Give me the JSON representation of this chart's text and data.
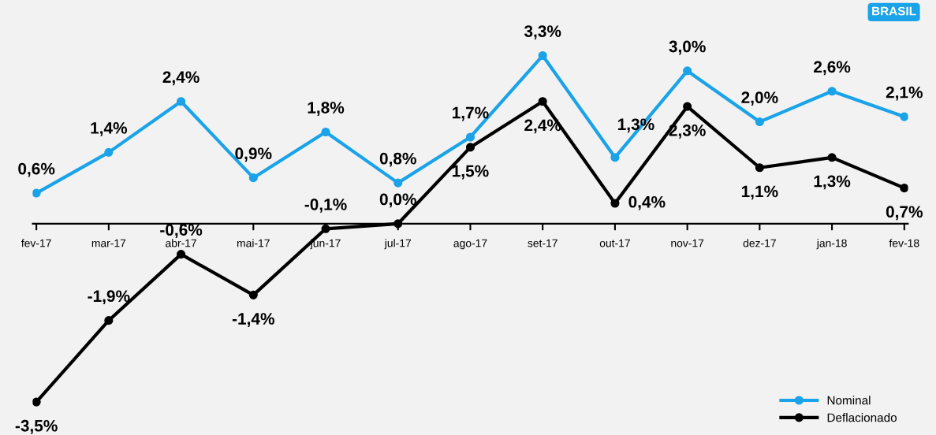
{
  "chart_data": {
    "type": "line",
    "categories": [
      "fev-17",
      "mar-17",
      "abr-17",
      "mai-17",
      "jun-17",
      "jul-17",
      "ago-17",
      "set-17",
      "out-17",
      "nov-17",
      "dez-17",
      "jan-18",
      "fev-18"
    ],
    "series": [
      {
        "name": "Nominal",
        "color": "#1aa3e8",
        "values": [
          0.6,
          1.4,
          2.4,
          0.9,
          1.8,
          0.8,
          1.7,
          3.3,
          1.3,
          3.0,
          2.0,
          2.6,
          2.1
        ],
        "value_labels": [
          "0,6%",
          "1,4%",
          "2,4%",
          "0,9%",
          "1,8%",
          "0,8%",
          "1,7%",
          "3,3%",
          "1,3%",
          "3,0%",
          "2,0%",
          "2,6%",
          "2,1%"
        ]
      },
      {
        "name": "Deflacionado",
        "color": "#000000",
        "values": [
          -3.5,
          -1.9,
          -0.6,
          -1.4,
          -0.1,
          0.0,
          1.5,
          2.4,
          0.4,
          2.3,
          1.1,
          1.3,
          0.7
        ],
        "value_labels": [
          "-3,5%",
          "-1,9%",
          "-0,6%",
          "-1,4%",
          "-0,1%",
          "0,0%",
          "1,5%",
          "2,4%",
          "0,4%",
          "2,3%",
          "1,1%",
          "1,3%",
          "0,7%"
        ]
      }
    ],
    "annotations": [
      "BRASIL"
    ],
    "marker": "circle",
    "line_style": "solid",
    "grid": false,
    "legend": "bottom right",
    "tick_labels": "x"
  }
}
